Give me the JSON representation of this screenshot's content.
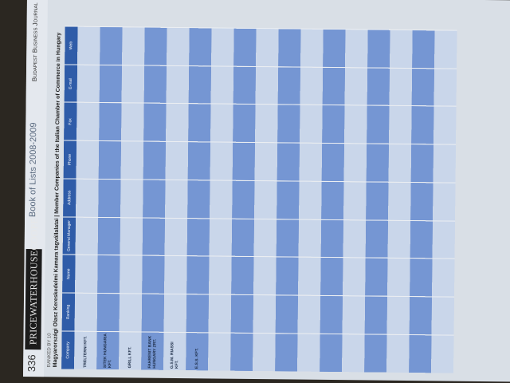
{
  "header": {
    "page_number": "336",
    "logo": "PRICEWATERHOUSECOOPERS",
    "book": "Book of Lists 2008-2009",
    "journal": "Budapest Business Journal",
    "ranked_by": "RANKED BY 10",
    "title": "Magyarországi Olasz Kereskedelmi Kamara tagvállalatai | Member Companies of the Italian Chamber of Commerce in Hungary"
  },
  "table": {
    "columns": [
      "Company",
      "Ranking",
      "Name",
      "General Manager",
      "Address",
      "Phone",
      "Fax",
      "E-mail",
      "Web"
    ],
    "rows": [
      "TRELTERNI KFT.",
      "SITEK HUNGARIA KFT.",
      "GRILL KFT.",
      "FAHRENIT BANK HUNGARY ZRT.",
      "G.S.M. RIASSI KFT.",
      "E.S.S. KFT."
    ]
  }
}
